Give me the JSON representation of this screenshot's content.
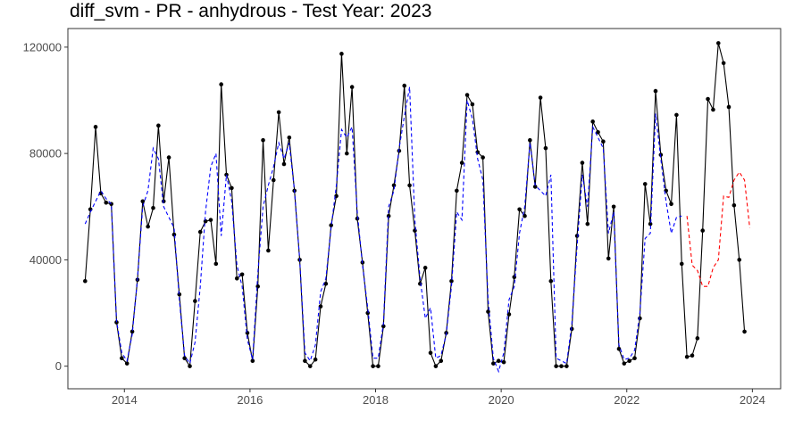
{
  "chart_data": {
    "type": "line",
    "title": "diff_svm - PR - anhydrous - Test Year: 2023",
    "xlabel": "",
    "ylabel": "",
    "xlim": [
      2013.1,
      2024.45
    ],
    "ylim": [
      -8500,
      127000
    ],
    "xticks": [
      2014,
      2016,
      2018,
      2020,
      2022,
      2024
    ],
    "xtick_labels": [
      "2014",
      "2016",
      "2018",
      "2020",
      "2022",
      "2024"
    ],
    "yticks": [
      0,
      40000,
      80000,
      120000
    ],
    "ytick_labels": [
      "0",
      "40000",
      "80000",
      "120000"
    ],
    "grid": false,
    "legend": "none",
    "series": [
      {
        "role": "actual",
        "color": "#000000",
        "style": "solid-with-points",
        "x_start": 2013.375,
        "step": 0.0833333,
        "values": [
          32000,
          59000,
          90000,
          65000,
          61500,
          61000,
          16500,
          3000,
          1000,
          13000,
          32500,
          62000,
          52500,
          59500,
          90500,
          62000,
          78500,
          49500,
          27000,
          3000,
          0,
          24500,
          50500,
          54500,
          55000,
          38500,
          106000,
          72000,
          67000,
          33000,
          34500,
          12500,
          2000,
          30000,
          85000,
          43500,
          70000,
          95500,
          76000,
          86000,
          66000,
          40000,
          2000,
          0,
          2500,
          22500,
          31000,
          53000,
          64000,
          117500,
          80000,
          105000,
          55500,
          39000,
          20000,
          0,
          0,
          15000,
          56500,
          68000,
          81000,
          105500,
          68000,
          51000,
          31000,
          37000,
          5000,
          0,
          2000,
          12500,
          32000,
          66000,
          76500,
          102000,
          98500,
          80500,
          78500,
          20500,
          1000,
          2000,
          1500,
          19500,
          33500,
          59000,
          56500,
          85000,
          67500,
          101000,
          82000,
          32000,
          0,
          0,
          0,
          14000,
          49000,
          76500,
          53500,
          92000,
          88000,
          84500,
          40500,
          60000,
          6500,
          1000,
          2000,
          3000,
          18000,
          68500,
          53500,
          103500,
          79500,
          66000,
          61000,
          94500,
          38500,
          3500,
          4000,
          10500,
          51000,
          100500,
          96500,
          121500,
          114000,
          97500,
          60500,
          40000,
          13000
        ]
      },
      {
        "role": "fitted",
        "color": "#0000ff",
        "style": "dashed",
        "x_start": 2013.375,
        "step": 0.0833333,
        "values": [
          53500,
          58000,
          62000,
          66000,
          63000,
          61000,
          17000,
          5000,
          2000,
          12000,
          33000,
          60000,
          66000,
          82000,
          78000,
          60000,
          56000,
          52000,
          25000,
          4000,
          1000,
          9000,
          30000,
          58000,
          75000,
          80000,
          49000,
          72000,
          62000,
          38000,
          30000,
          10000,
          2500,
          35000,
          60000,
          68000,
          75000,
          84000,
          78000,
          84000,
          66000,
          40000,
          5000,
          2000,
          8000,
          28000,
          33000,
          52000,
          68000,
          89000,
          86000,
          90000,
          58000,
          38000,
          22000,
          3000,
          3000,
          16000,
          60000,
          66000,
          82000,
          94000,
          105000,
          55000,
          33000,
          18000,
          22000,
          3000,
          4000,
          12000,
          30000,
          58000,
          55000,
          100000,
          93000,
          78000,
          70000,
          25000,
          3000,
          -2000,
          5000,
          25000,
          30000,
          50000,
          60000,
          84000,
          68000,
          66000,
          64000,
          72000,
          3000,
          2000,
          1000,
          16000,
          45000,
          72000,
          60000,
          90000,
          86000,
          82000,
          50000,
          58000,
          8000,
          2500,
          3000,
          6000,
          20000,
          48000,
          50000,
          95000,
          78000,
          62000,
          50000,
          56000,
          56500
        ]
      },
      {
        "role": "forecast",
        "color": "#ff0000",
        "style": "dashed",
        "x_start": 2022.9583,
        "step": 0.0833333,
        "values": [
          56500,
          38000,
          36000,
          30000,
          30000,
          37000,
          40000,
          64000,
          63500,
          70000,
          73000,
          70000,
          52000
        ]
      }
    ]
  }
}
